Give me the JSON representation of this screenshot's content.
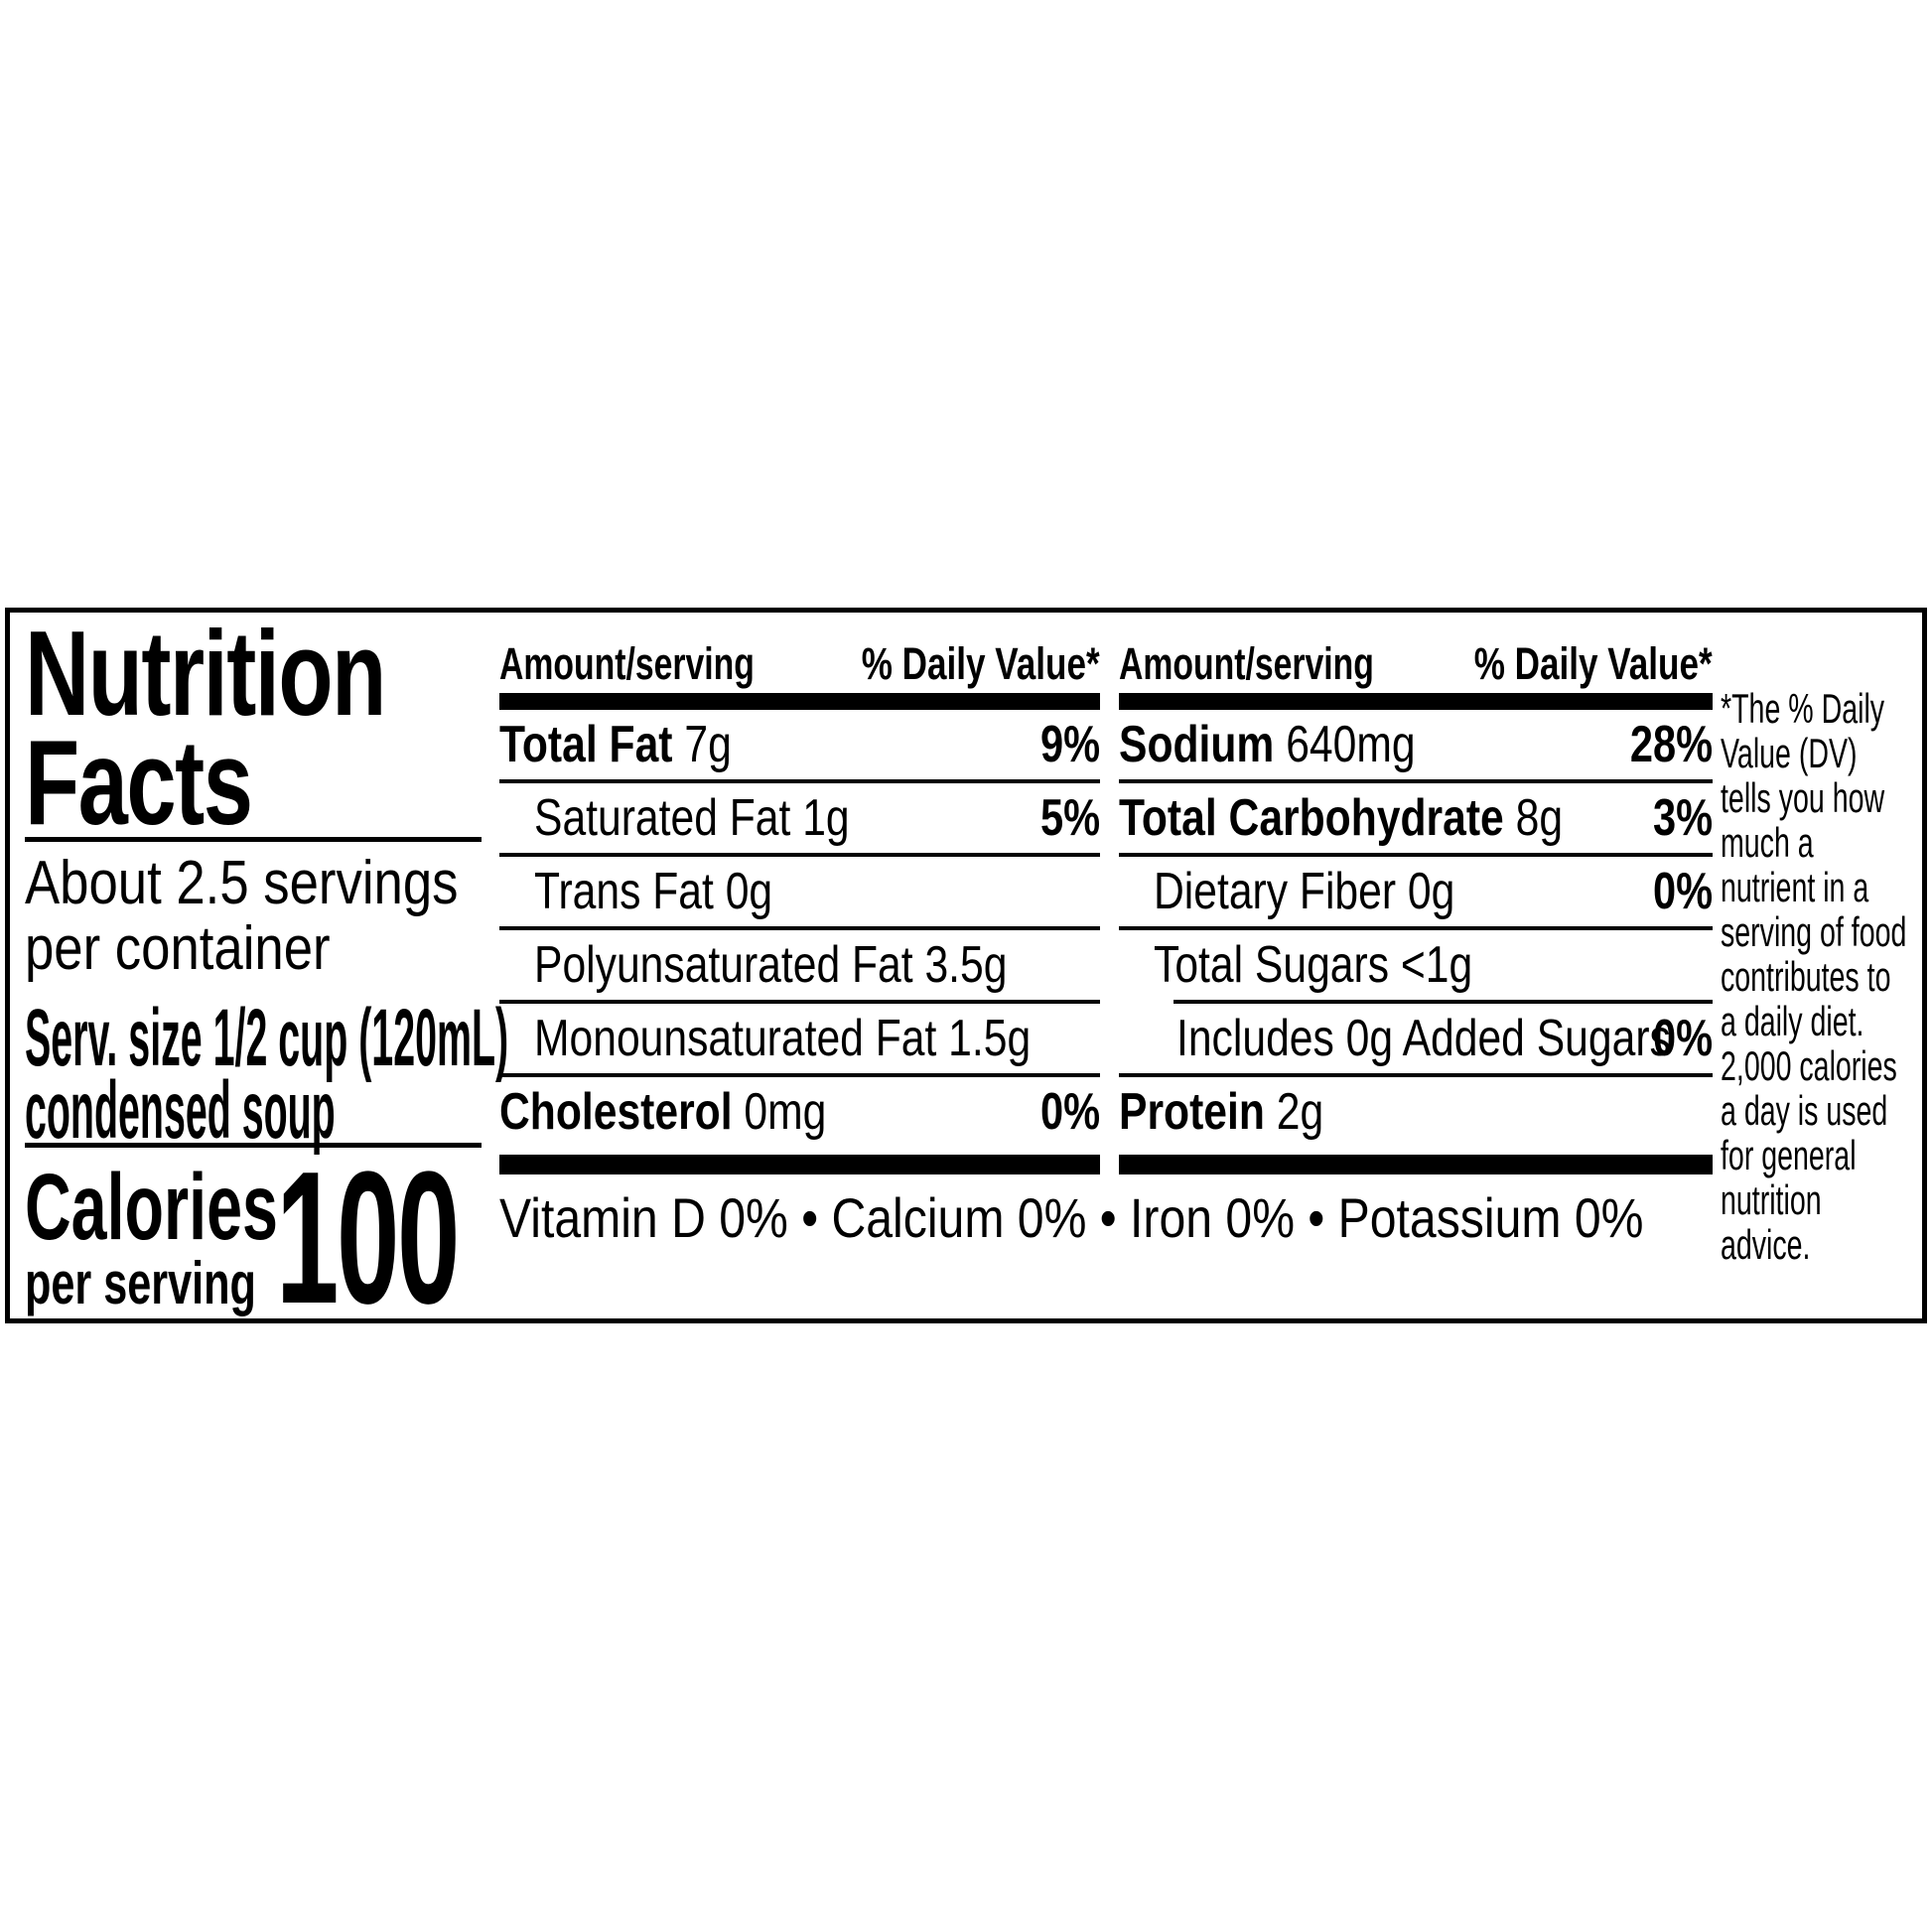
{
  "label": {
    "title": "Nutrition\nFacts",
    "servings": "About 2.5 servings\nper container",
    "serving_size": "Serv. size 1/2 cup (120mL)\ncondensed soup",
    "calories_label": "Calories",
    "calories_sublabel": "per serving",
    "calories_value": "100",
    "columns": [
      {
        "amount_header": "Amount/serving",
        "dv_header": "% Daily Value*",
        "rows": [
          {
            "name": "Total Fat",
            "rest": " 7g",
            "dv": "9%"
          },
          {
            "name": "",
            "rest": "Saturated Fat 1g",
            "dv": "5%"
          },
          {
            "name": "",
            "rest": "Trans Fat 0g",
            "dv": ""
          },
          {
            "name": "",
            "rest": "Polyunsaturated Fat 3.5g",
            "dv": ""
          },
          {
            "name": "",
            "rest": "Monounsaturated Fat 1.5g",
            "dv": ""
          },
          {
            "name": "Cholesterol",
            "rest": " 0mg",
            "dv": "0%"
          }
        ]
      },
      {
        "amount_header": "Amount/serving",
        "dv_header": "% Daily Value*",
        "rows": [
          {
            "name": "Sodium",
            "rest": " 640mg",
            "dv": "28%"
          },
          {
            "name": "Total Carbohydrate",
            "rest": " 8g",
            "dv": "3%"
          },
          {
            "name": "",
            "rest": "Dietary Fiber 0g",
            "dv": "0%"
          },
          {
            "name": "",
            "rest": "Total Sugars <1g",
            "dv": ""
          },
          {
            "name": "",
            "rest": "Includes 0g Added Sugars",
            "dv": "0%"
          },
          {
            "name": "Protein",
            "rest": " 2g",
            "dv": ""
          }
        ]
      }
    ],
    "micronutrients": "Vitamin D 0% • Calcium 0% • Iron 0% • Potassium 0%",
    "footnote": "*The % Daily\nValue (DV)\ntells you how\nmuch a\nnutrient in a\nserving of food\ncontributes to\na daily diet.\n2,000 calories\na day is used\nfor general\nnutrition\nadvice.",
    "ink_color": "#000000",
    "paper_color": "#ffffff"
  }
}
